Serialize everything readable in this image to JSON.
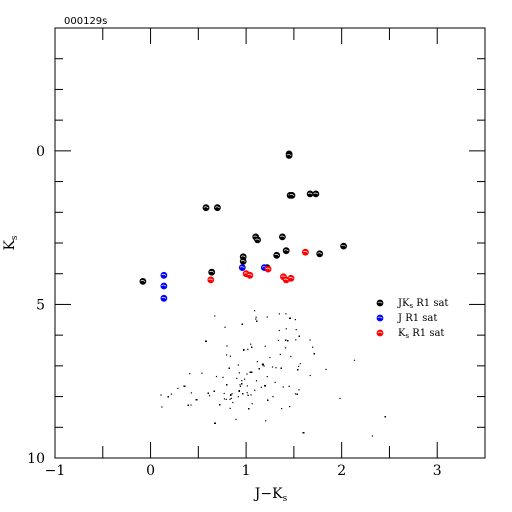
{
  "chart_data": {
    "type": "scatter",
    "corner_label": "000129s",
    "xlabel": "J−K",
    "xlabel_sub": "s",
    "ylabel": "K",
    "ylabel_sub": "s",
    "xlim": [
      -1,
      3.5
    ],
    "ylim": [
      10,
      -4
    ],
    "y_inverted": true,
    "x_major_ticks": [
      -1,
      0,
      1,
      2,
      3
    ],
    "x_tick_labels": [
      "−1",
      "0",
      "1",
      "2",
      "3"
    ],
    "y_major_ticks": [
      0,
      5,
      10
    ],
    "y_tick_labels": [
      "0",
      "5",
      "10"
    ],
    "legend": [
      {
        "main": "JK",
        "sub": "s",
        "rest": " R1 sat",
        "color": "#000000"
      },
      {
        "main": "J",
        "sub": "",
        "rest": " R1 sat",
        "color": "#0000ff"
      },
      {
        "main": "K",
        "sub": "s",
        "rest": " R1 sat",
        "color": "#ff0000"
      }
    ],
    "series": [
      {
        "name": "JKs R1 sat",
        "color": "#000000",
        "points": [
          [
            -0.08,
            4.25
          ],
          [
            0.58,
            1.85
          ],
          [
            0.7,
            1.85
          ],
          [
            0.64,
            3.95
          ],
          [
            0.97,
            3.45
          ],
          [
            0.97,
            3.6
          ],
          [
            1.1,
            2.8
          ],
          [
            1.12,
            2.9
          ],
          [
            1.22,
            3.8
          ],
          [
            1.32,
            3.4
          ],
          [
            1.38,
            2.8
          ],
          [
            1.42,
            3.25
          ],
          [
            1.45,
            0.1
          ],
          [
            1.45,
            0.15
          ],
          [
            1.46,
            1.45
          ],
          [
            1.48,
            1.45
          ],
          [
            1.67,
            1.4
          ],
          [
            1.73,
            1.4
          ],
          [
            1.77,
            3.35
          ],
          [
            2.02,
            3.1
          ]
        ]
      },
      {
        "name": "J R1 sat",
        "color": "#0000ff",
        "points": [
          [
            0.14,
            4.05
          ],
          [
            0.14,
            4.4
          ],
          [
            0.14,
            4.8
          ],
          [
            0.96,
            3.8
          ],
          [
            1.19,
            3.8
          ]
        ]
      },
      {
        "name": "Ks R1 sat",
        "color": "#ff0000",
        "points": [
          [
            0.63,
            4.2
          ],
          [
            1.0,
            4.0
          ],
          [
            1.04,
            4.05
          ],
          [
            1.23,
            3.85
          ],
          [
            1.39,
            4.1
          ],
          [
            1.42,
            4.2
          ],
          [
            1.47,
            4.15
          ],
          [
            1.62,
            3.3
          ]
        ]
      }
    ],
    "field_stars": {
      "color": "#000000",
      "description_count": 1400
    }
  }
}
